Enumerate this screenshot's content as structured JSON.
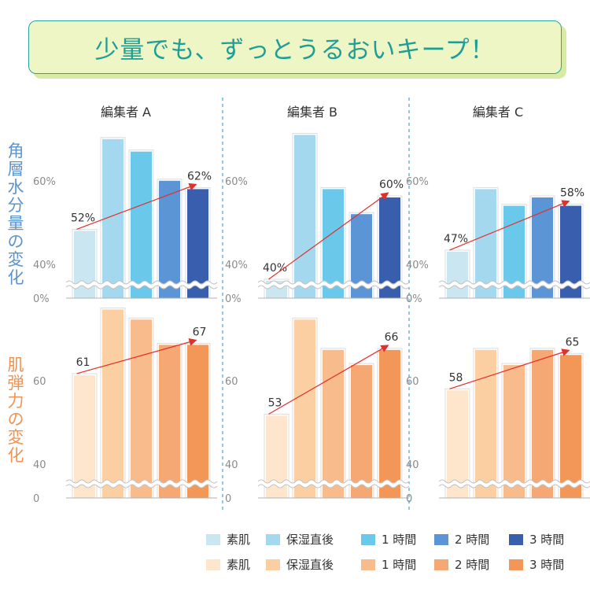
{
  "title": "少量でも、ずっとうるおいキープ！",
  "row_labels": [
    "角層水分量の変化",
    "肌弾力の変化"
  ],
  "editors": [
    "編集者 A",
    "編集者 B",
    "編集者 C"
  ],
  "legend": {
    "labels": [
      "素肌",
      "保湿直後",
      "1 時間",
      "2 時間",
      "3 時間"
    ],
    "blue_colors": [
      "#c9e6f1",
      "#a4d8ef",
      "#6ac9ea",
      "#5b95d6",
      "#3a5eae"
    ],
    "orange_colors": [
      "#fde6cc",
      "#fbcfa2",
      "#f8bb8b",
      "#f5a873",
      "#f29757"
    ]
  },
  "chart_data": [
    {
      "type": "bar",
      "panel": "moisture",
      "editor": "編集者 A",
      "categories": [
        "素肌",
        "保湿直後",
        "1 時間",
        "2 時間",
        "3 時間"
      ],
      "values": [
        52,
        74,
        71,
        64,
        62
      ],
      "labeled": {
        "first": "52%",
        "last": "62%"
      },
      "y_ticks": [
        "0%",
        "40%",
        "60%"
      ],
      "broken_axis": true
    },
    {
      "type": "bar",
      "panel": "moisture",
      "editor": "編集者 B",
      "categories": [
        "素肌",
        "保湿直後",
        "1 時間",
        "2 時間",
        "3 時間"
      ],
      "values": [
        40,
        75,
        62,
        56,
        60
      ],
      "labeled": {
        "first": "40%",
        "last": "60%"
      },
      "y_ticks": [
        "0%",
        "40%",
        "60%"
      ],
      "broken_axis": true
    },
    {
      "type": "bar",
      "panel": "moisture",
      "editor": "編集者 C",
      "categories": [
        "素肌",
        "保湿直後",
        "1 時間",
        "2 時間",
        "3 時間"
      ],
      "values": [
        47,
        62,
        58,
        60,
        58
      ],
      "labeled": {
        "first": "47%",
        "last": "58%"
      },
      "y_ticks": [
        "0%",
        "40%",
        "60%"
      ],
      "broken_axis": true
    },
    {
      "type": "bar",
      "panel": "elasticity",
      "editor": "編集者 A",
      "categories": [
        "素肌",
        "保湿直後",
        "1 時間",
        "2 時間",
        "3 時間"
      ],
      "values": [
        61,
        74,
        72,
        67,
        67
      ],
      "labeled": {
        "first": "61",
        "last": "67"
      },
      "y_ticks": [
        "0",
        "40",
        "60"
      ],
      "broken_axis": true
    },
    {
      "type": "bar",
      "panel": "elasticity",
      "editor": "編集者 B",
      "categories": [
        "素肌",
        "保湿直後",
        "1 時間",
        "2 時間",
        "3 時間"
      ],
      "values": [
        53,
        72,
        66,
        63,
        66
      ],
      "labeled": {
        "first": "53",
        "last": "66"
      },
      "y_ticks": [
        "0",
        "40",
        "60"
      ],
      "broken_axis": true
    },
    {
      "type": "bar",
      "panel": "elasticity",
      "editor": "編集者 C",
      "categories": [
        "素肌",
        "保湿直後",
        "1 時間",
        "2 時間",
        "3 時間"
      ],
      "values": [
        58,
        66,
        63,
        66,
        65
      ],
      "labeled": {
        "first": "58",
        "last": "65"
      },
      "y_ticks": [
        "0",
        "40",
        "60"
      ],
      "broken_axis": true
    }
  ]
}
